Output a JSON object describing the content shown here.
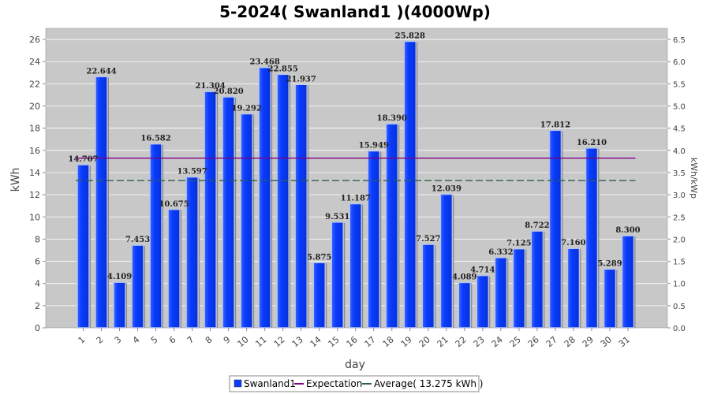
{
  "chart_data": {
    "type": "bar",
    "title": "5-2024( Swanland1 )(4000Wp)",
    "xlabel": "day",
    "ylabel": "kWh",
    "y2label": "kWh/kWp",
    "categories": [
      "1",
      "2",
      "3",
      "4",
      "5",
      "6",
      "7",
      "8",
      "9",
      "10",
      "11",
      "12",
      "13",
      "14",
      "15",
      "16",
      "17",
      "18",
      "19",
      "20",
      "21",
      "22",
      "23",
      "24",
      "25",
      "26",
      "27",
      "28",
      "29",
      "30",
      "31"
    ],
    "series": [
      {
        "name": "Swanland1",
        "color": "#0a3cff",
        "values": [
          14.707,
          22.644,
          4.109,
          7.453,
          16.582,
          10.675,
          13.597,
          21.304,
          20.82,
          19.292,
          23.468,
          22.855,
          21.937,
          5.875,
          9.531,
          11.187,
          15.949,
          18.39,
          25.828,
          7.527,
          12.039,
          4.089,
          4.714,
          6.332,
          7.125,
          8.722,
          17.812,
          7.16,
          16.21,
          5.289,
          8.3
        ],
        "value_labels": [
          "14.707",
          "22.644",
          "4.109",
          "7.453",
          "16.582",
          "10.675",
          "13.597",
          "21.304",
          "20.820",
          "19.292",
          "23.468",
          "22.855",
          "21.937",
          "5.875",
          "9.531",
          "11.187",
          "15.949",
          "18.390",
          "25.828",
          "7.527",
          "12.039",
          "4.089",
          "4.714",
          "6.332",
          "7.125",
          "8.722",
          "17.812",
          "7.160",
          "16.210",
          "5.289",
          "8.300"
        ]
      }
    ],
    "reference_lines": [
      {
        "name": "Expectation",
        "value": 15.3,
        "color": "#800080",
        "style": "solid"
      },
      {
        "name": "Average( 13.275 kWh )",
        "value": 13.275,
        "color": "#2f5f4f",
        "style": "dashed"
      }
    ],
    "ylim": [
      0,
      27
    ],
    "yticks": [
      0,
      2,
      4,
      6,
      8,
      10,
      12,
      14,
      16,
      18,
      20,
      22,
      24,
      26
    ],
    "y2lim": [
      0,
      6.75
    ],
    "y2ticks": [
      "0.0",
      "0.5",
      "1.0",
      "1.5",
      "2.0",
      "2.5",
      "3.0",
      "3.5",
      "4.0",
      "4.5",
      "5.0",
      "5.5",
      "6.0",
      "6.5"
    ],
    "grid": true,
    "legend_position": "bottom"
  }
}
